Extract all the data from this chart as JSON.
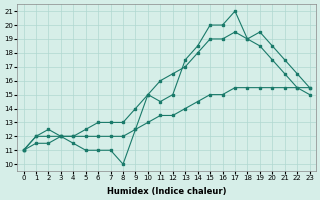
{
  "xlabel": "Humidex (Indice chaleur)",
  "xlim": [
    -0.5,
    23.5
  ],
  "ylim": [
    9.5,
    21.5
  ],
  "yticks": [
    10,
    11,
    12,
    13,
    14,
    15,
    16,
    17,
    18,
    19,
    20,
    21
  ],
  "xticks": [
    0,
    1,
    2,
    3,
    4,
    5,
    6,
    7,
    8,
    9,
    10,
    11,
    12,
    13,
    14,
    15,
    16,
    17,
    18,
    19,
    20,
    21,
    22,
    23
  ],
  "line_color": "#1a7a6a",
  "bg_color": "#d6eee8",
  "grid_color": "#b0d8d0",
  "line1_x": [
    0,
    1,
    2,
    3,
    4,
    5,
    6,
    7,
    8,
    9,
    10,
    11,
    12,
    13,
    14,
    15,
    16,
    17,
    18,
    19,
    20,
    21,
    22,
    23
  ],
  "line1_y": [
    11,
    12,
    12,
    12,
    11.5,
    11,
    11,
    11,
    10,
    12.5,
    15,
    14.5,
    15,
    17.5,
    18.5,
    20,
    20,
    21,
    19,
    18.5,
    17.5,
    16.5,
    15.5,
    15
  ],
  "line2_x": [
    0,
    1,
    2,
    3,
    4,
    5,
    6,
    7,
    8,
    9,
    10,
    11,
    12,
    13,
    14,
    15,
    16,
    17,
    18,
    19,
    20,
    21,
    22,
    23
  ],
  "line2_y": [
    11,
    12,
    12.5,
    12,
    12,
    12.5,
    13,
    13,
    13,
    14,
    15,
    16,
    16.5,
    17,
    18,
    19,
    19,
    19.5,
    19,
    19.5,
    18.5,
    17.5,
    16.5,
    15.5
  ],
  "line3_x": [
    0,
    1,
    2,
    3,
    4,
    5,
    6,
    7,
    8,
    9,
    10,
    11,
    12,
    13,
    14,
    15,
    16,
    17,
    18,
    19,
    20,
    21,
    22,
    23
  ],
  "line3_y": [
    11,
    11.5,
    11.5,
    12,
    12,
    12,
    12,
    12,
    12,
    12.5,
    13,
    13.5,
    13.5,
    14,
    14.5,
    15,
    15,
    15.5,
    15.5,
    15.5,
    15.5,
    15.5,
    15.5,
    15.5
  ],
  "marker_size": 2,
  "linewidth": 0.8
}
